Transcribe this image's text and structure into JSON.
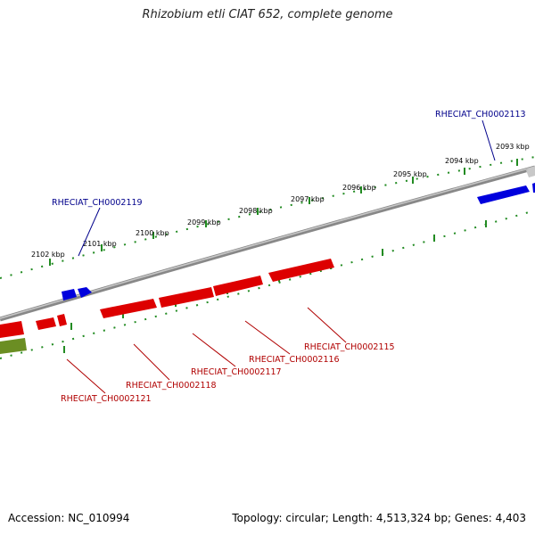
{
  "title": "Rhizobium etli CIAT 652, complete genome",
  "footer": {
    "accession": "Accession: NC_010994",
    "summary": "Topology: circular; Length: 4,513,324 bp; Genes: 4,403"
  },
  "scale": {
    "ticks": [
      "2093 kbp",
      "2094 kbp",
      "2095 kbp",
      "2096 kbp",
      "2097 kbp",
      "2098 kbp",
      "2099 kbp",
      "2100 kbp",
      "2101 kbp",
      "2102 kbp"
    ]
  },
  "genes": {
    "forward_label": "RHECIAT_CH0002113",
    "forward_label_2": "RHECIAT_CH0002119",
    "reverse_labels": [
      "RHECIAT_CH0002115",
      "RHECIAT_CH0002116",
      "RHECIAT_CH0002117",
      "RHECIAT_CH0002118",
      "RHECIAT_CH0002121"
    ]
  },
  "colors": {
    "forward_gene": "#0000ee",
    "reverse_gene": "#ee0000",
    "rna_gene": "#6b8e23",
    "backbone": "#808080",
    "tick": "#228b22",
    "label_forward": "#00008b",
    "label_reverse": "#b00000"
  }
}
